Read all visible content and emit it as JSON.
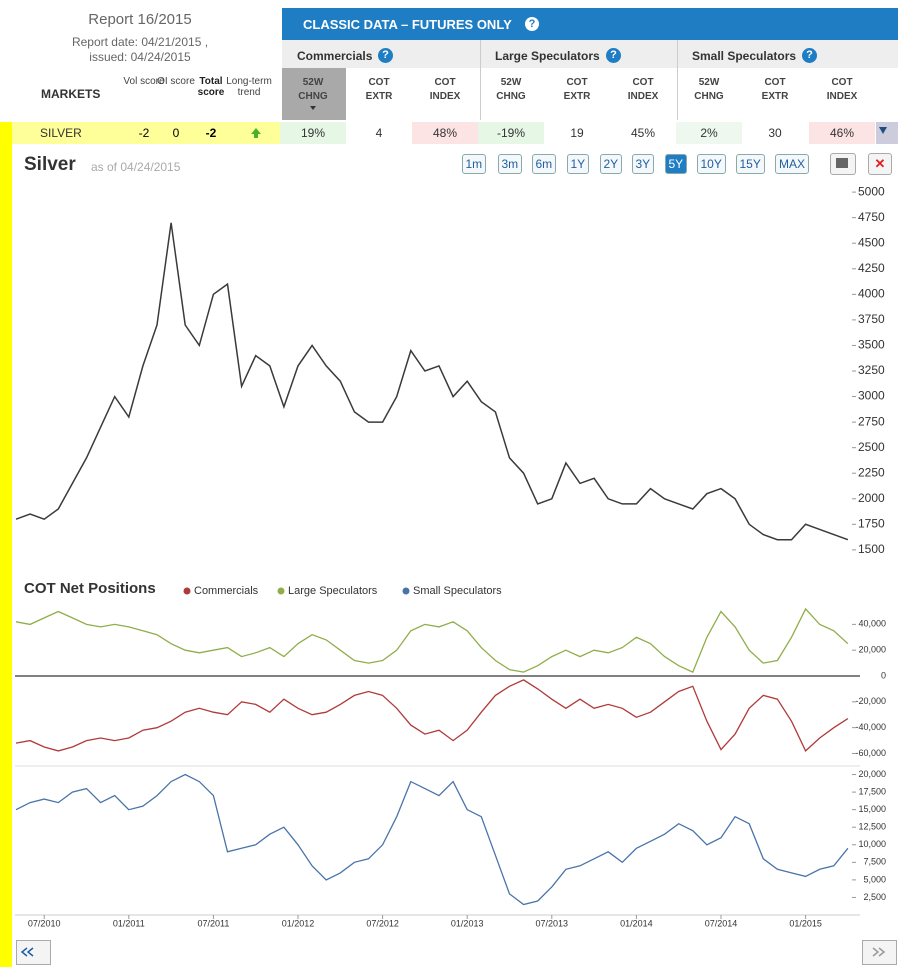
{
  "report": {
    "title": "Report 16/2015",
    "date": "Report date: 04/21/2015 ,",
    "issued": "issued: 04/24/2015"
  },
  "table": {
    "banner": "CLASSIC DATA – FUTURES ONLY",
    "markets": "MARKETS",
    "score_headers": [
      "Vol score",
      "OI score",
      "Total score",
      "Long-term trend"
    ],
    "groups": [
      {
        "name": "Commercials",
        "columns": [
          "52W CHNG",
          "COT EXTR",
          "COT INDEX"
        ]
      },
      {
        "name": "Large Speculators",
        "columns": [
          "52W CHNG",
          "COT EXTR",
          "COT INDEX"
        ]
      },
      {
        "name": "Small Speculators",
        "columns": [
          "52W CHNG",
          "COT EXTR",
          "COT INDEX"
        ]
      }
    ],
    "row": {
      "market": "SILVER",
      "scores": [
        "-2",
        "0",
        "-2"
      ],
      "values": [
        [
          "19%",
          "4",
          "48%"
        ],
        [
          "-19%",
          "19",
          "45%"
        ],
        [
          "2%",
          "30",
          "46%"
        ]
      ]
    }
  },
  "chart_data": [
    {
      "type": "line",
      "title": "Silver",
      "subtitle": "as of 04/24/2015",
      "range_buttons": [
        "1m",
        "3m",
        "6m",
        "1Y",
        "2Y",
        "3Y",
        "5Y",
        "10Y",
        "15Y",
        "MAX"
      ],
      "selected_range": "5Y",
      "x": [
        "05/2010",
        "06/2010",
        "07/2010",
        "08/2010",
        "09/2010",
        "10/2010",
        "11/2010",
        "12/2010",
        "01/2011",
        "02/2011",
        "03/2011",
        "04/2011",
        "05/2011",
        "06/2011",
        "07/2011",
        "08/2011",
        "09/2011",
        "10/2011",
        "11/2011",
        "12/2011",
        "01/2012",
        "02/2012",
        "03/2012",
        "04/2012",
        "05/2012",
        "06/2012",
        "07/2012",
        "08/2012",
        "09/2012",
        "10/2012",
        "11/2012",
        "12/2012",
        "01/2013",
        "02/2013",
        "03/2013",
        "04/2013",
        "05/2013",
        "06/2013",
        "07/2013",
        "08/2013",
        "09/2013",
        "10/2013",
        "11/2013",
        "12/2013",
        "01/2014",
        "02/2014",
        "03/2014",
        "04/2014",
        "05/2014",
        "06/2014",
        "07/2014",
        "08/2014",
        "09/2014",
        "10/2014",
        "11/2014",
        "12/2014",
        "01/2015",
        "02/2015",
        "03/2015",
        "04/2015"
      ],
      "color": "#3a3a3a",
      "values": [
        1800,
        1850,
        1800,
        1900,
        2150,
        2400,
        2700,
        3000,
        2800,
        3300,
        3700,
        4700,
        3700,
        3500,
        4000,
        4100,
        3100,
        3400,
        3300,
        2900,
        3300,
        3500,
        3300,
        3150,
        2850,
        2750,
        2750,
        3000,
        3450,
        3250,
        3300,
        3000,
        3150,
        2950,
        2850,
        2400,
        2250,
        1950,
        2000,
        2350,
        2150,
        2200,
        2000,
        1950,
        1950,
        2100,
        2000,
        1950,
        1900,
        2050,
        2100,
        2000,
        1750,
        1650,
        1600,
        1600,
        1750,
        1700,
        1650,
        1600
      ],
      "ylim": [
        1450,
        5050
      ],
      "yticks": [
        5000,
        4750,
        4500,
        4250,
        4000,
        3750,
        3500,
        3250,
        3000,
        2750,
        2500,
        2250,
        2000,
        1750,
        1500
      ]
    },
    {
      "type": "line",
      "title": "COT Net Positions",
      "x": [
        "05/2010",
        "06/2010",
        "07/2010",
        "08/2010",
        "09/2010",
        "10/2010",
        "11/2010",
        "12/2010",
        "01/2011",
        "02/2011",
        "03/2011",
        "04/2011",
        "05/2011",
        "06/2011",
        "07/2011",
        "08/2011",
        "09/2011",
        "10/2011",
        "11/2011",
        "12/2011",
        "01/2012",
        "02/2012",
        "03/2012",
        "04/2012",
        "05/2012",
        "06/2012",
        "07/2012",
        "08/2012",
        "09/2012",
        "10/2012",
        "11/2012",
        "12/2012",
        "01/2013",
        "02/2013",
        "03/2013",
        "04/2013",
        "05/2013",
        "06/2013",
        "07/2013",
        "08/2013",
        "09/2013",
        "10/2013",
        "11/2013",
        "12/2013",
        "01/2014",
        "02/2014",
        "03/2014",
        "04/2014",
        "05/2014",
        "06/2014",
        "07/2014",
        "08/2014",
        "09/2014",
        "10/2014",
        "11/2014",
        "12/2014",
        "01/2015",
        "02/2015",
        "03/2015",
        "04/2015"
      ],
      "series": [
        {
          "name": "Commercials",
          "color": "#b03a3a",
          "values": [
            -52000,
            -50000,
            -55000,
            -58000,
            -55000,
            -50000,
            -48000,
            -50000,
            -48000,
            -42000,
            -40000,
            -35000,
            -28000,
            -25000,
            -28000,
            -30000,
            -20000,
            -22000,
            -28000,
            -18000,
            -25000,
            -30000,
            -28000,
            -22000,
            -15000,
            -12000,
            -15000,
            -25000,
            -38000,
            -45000,
            -42000,
            -50000,
            -42000,
            -28000,
            -15000,
            -8000,
            -3000,
            -10000,
            -18000,
            -25000,
            -18000,
            -25000,
            -22000,
            -25000,
            -32000,
            -28000,
            -20000,
            -12000,
            -8000,
            -35000,
            -57000,
            -45000,
            -25000,
            -15000,
            -18000,
            -35000,
            -58000,
            -48000,
            -40000,
            -33000
          ]
        },
        {
          "name": "Large Speculators",
          "color": "#8fae4a",
          "values": [
            42000,
            40000,
            45000,
            50000,
            45000,
            40000,
            38000,
            40000,
            38000,
            35000,
            32000,
            25000,
            20000,
            18000,
            20000,
            22000,
            15000,
            18000,
            22000,
            15000,
            25000,
            32000,
            28000,
            20000,
            12000,
            10000,
            12000,
            20000,
            35000,
            40000,
            38000,
            42000,
            35000,
            22000,
            12000,
            5000,
            3000,
            8000,
            15000,
            20000,
            15000,
            20000,
            18000,
            22000,
            30000,
            25000,
            15000,
            8000,
            3000,
            30000,
            50000,
            38000,
            20000,
            10000,
            12000,
            30000,
            52000,
            40000,
            35000,
            25000
          ]
        },
        {
          "name": "Small Speculators",
          "color": "#4a74a8",
          "axis": "y2",
          "values": [
            15000,
            16000,
            16500,
            16000,
            17500,
            18000,
            16000,
            17000,
            15000,
            15500,
            17000,
            19000,
            20000,
            19000,
            17000,
            9000,
            9500,
            10000,
            11500,
            12500,
            10000,
            7000,
            5000,
            6000,
            7500,
            8000,
            10000,
            14000,
            19000,
            18000,
            17000,
            19000,
            15000,
            14000,
            8500,
            3000,
            1500,
            2000,
            4000,
            6500,
            7000,
            8000,
            9000,
            7500,
            9500,
            10500,
            11500,
            13000,
            12000,
            10000,
            11000,
            14000,
            13000,
            8000,
            6500,
            6000,
            5500,
            6500,
            7000,
            9500
          ]
        }
      ],
      "ylim": [
        -68000,
        55000
      ],
      "yticks": [
        {
          "value": 40000,
          "label": "40,000"
        },
        {
          "value": 20000,
          "label": "20,000"
        },
        0,
        {
          "value": -20000,
          "label": "-20,000"
        },
        {
          "value": -40000,
          "label": "-40,000"
        },
        {
          "value": -60000,
          "label": "-60,000"
        }
      ],
      "y2lim": [
        0,
        21500
      ],
      "y2ticks": [
        {
          "value": 20000,
          "label": "20,000"
        },
        {
          "value": 17500,
          "label": "17,500"
        },
        {
          "value": 15000,
          "label": "15,000"
        },
        {
          "value": 12500,
          "label": "12,500"
        },
        {
          "value": 10000,
          "label": "10,000"
        },
        {
          "value": 7500,
          "label": "7,500"
        },
        {
          "value": 5000,
          "label": "5,000"
        },
        {
          "value": 2500,
          "label": "2,500"
        }
      ],
      "xticks": [
        "07/2010",
        "01/2011",
        "07/2011",
        "01/2012",
        "07/2012",
        "01/2013",
        "07/2013",
        "01/2014",
        "07/2014",
        "01/2015"
      ]
    }
  ]
}
